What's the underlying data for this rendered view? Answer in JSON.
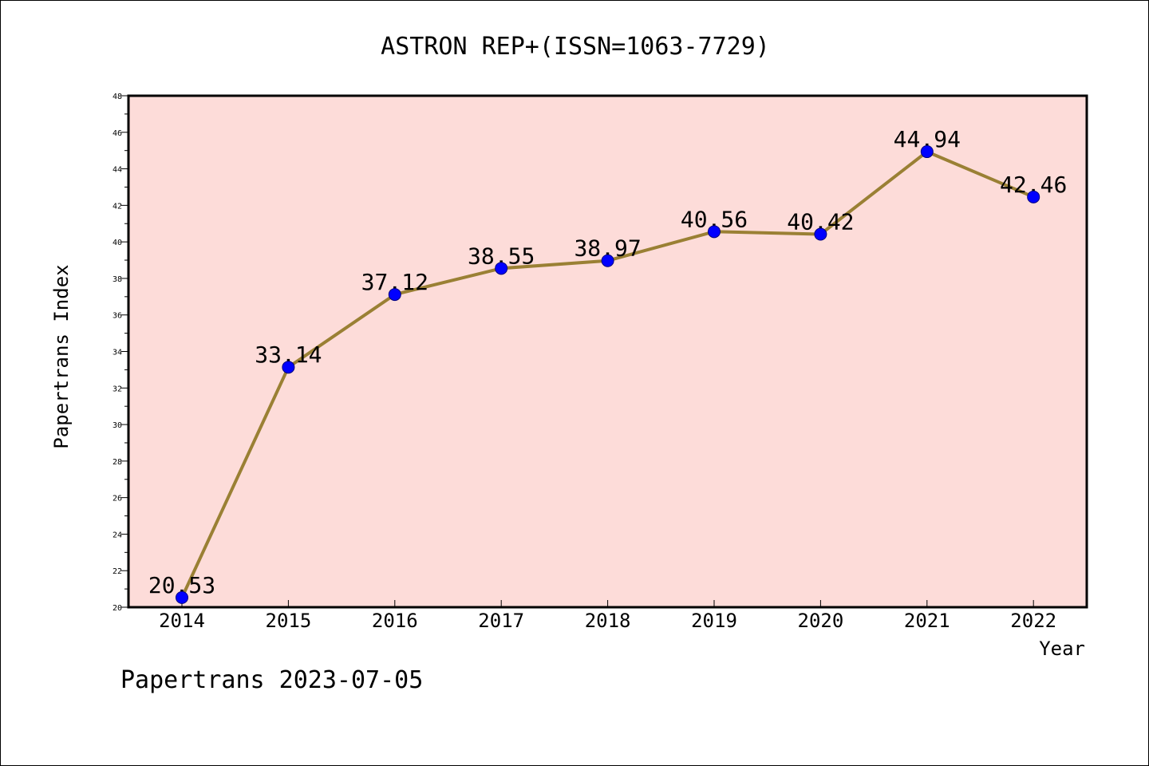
{
  "chart_data": {
    "type": "line",
    "title": "ASTRON REP+(ISSN=1063-7729)",
    "xlabel": "Year",
    "ylabel": "Papertrans Index",
    "categories": [
      "2014",
      "2015",
      "2016",
      "2017",
      "2018",
      "2019",
      "2020",
      "2021",
      "2022"
    ],
    "series": [
      {
        "values": [
          20.53,
          33.14,
          37.12,
          38.55,
          38.97,
          40.56,
          40.42,
          44.94,
          42.46
        ]
      }
    ],
    "data_labels": [
      "20.53",
      "33.14",
      "37.12",
      "38.55",
      "38.97",
      "40.56",
      "40.42",
      "44.94",
      "42.46"
    ],
    "ylim": [
      20,
      48
    ],
    "yticks": [
      "20",
      "22",
      "24",
      "26",
      "28",
      "30",
      "32",
      "34",
      "36",
      "38",
      "40",
      "42",
      "44",
      "46",
      "48"
    ],
    "grid": false,
    "legend": "none",
    "colors": {
      "plot_background": "#fddcd9",
      "line": "#9a8034",
      "marker": "#0000ff",
      "axes": "#000000"
    }
  },
  "footer": {
    "note": "Papertrans 2023-07-05"
  }
}
